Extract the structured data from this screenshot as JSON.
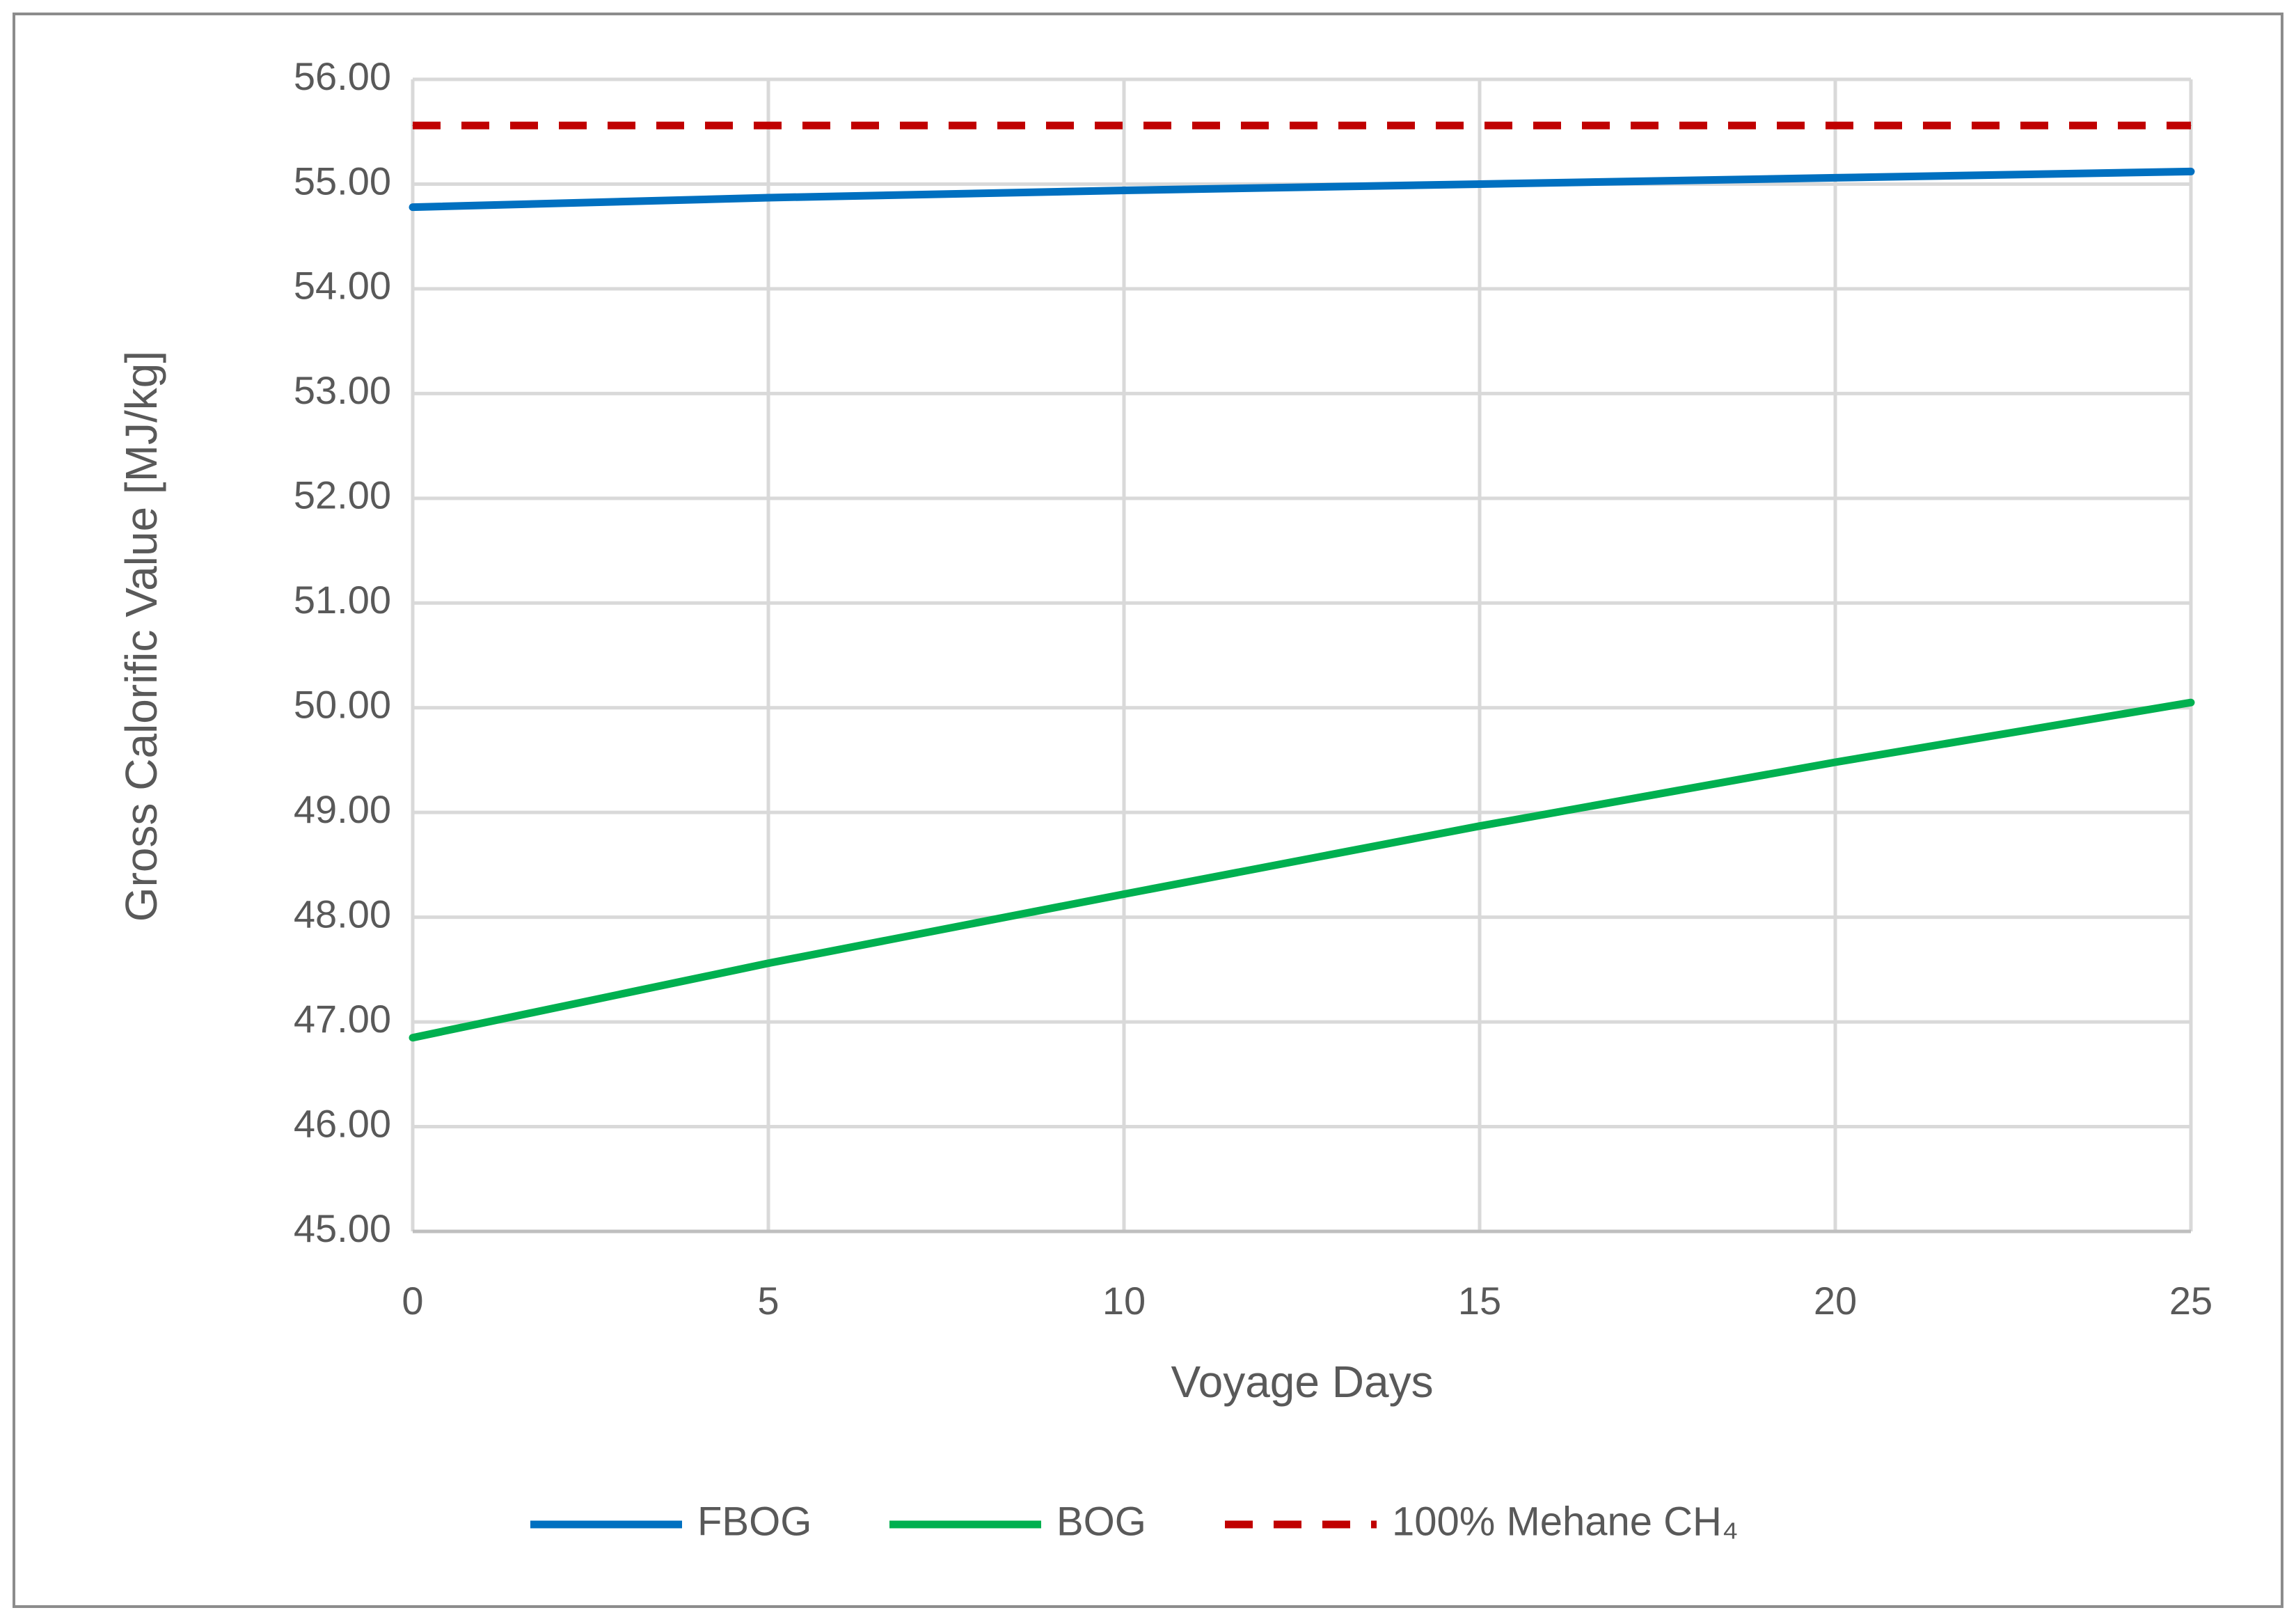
{
  "chart_data": {
    "type": "line",
    "title": "",
    "xlabel": "Voyage Days",
    "ylabel": "Gross Calorific Value [MJ/kg]",
    "xlim": [
      0,
      25
    ],
    "ylim": [
      45,
      56
    ],
    "x_ticks": [
      0,
      5,
      10,
      15,
      20,
      25
    ],
    "x_tick_labels": [
      "0",
      "5",
      "10",
      "15",
      "20",
      "25"
    ],
    "y_ticks": [
      45,
      46,
      47,
      48,
      49,
      50,
      51,
      52,
      53,
      54,
      55,
      56
    ],
    "y_tick_labels": [
      "45.00",
      "46.00",
      "47.00",
      "48.00",
      "49.00",
      "50.00",
      "51.00",
      "52.00",
      "53.00",
      "54.00",
      "55.00",
      "56.00"
    ],
    "grid": true,
    "legend_position": "bottom",
    "series": [
      {
        "name": "FBOG",
        "color": "#0070C0",
        "dash": "solid",
        "x": [
          0,
          5,
          10,
          15,
          20,
          25
        ],
        "values": [
          54.78,
          54.87,
          54.94,
          55.0,
          55.06,
          55.12
        ]
      },
      {
        "name": "BOG",
        "color": "#00B050",
        "dash": "solid",
        "x": [
          0,
          5,
          10,
          15,
          20,
          25
        ],
        "values": [
          46.85,
          47.56,
          48.22,
          48.87,
          49.48,
          50.05
        ]
      },
      {
        "name": "100% Mehane CH₄",
        "color": "#C00000",
        "dash": "dashed",
        "x": [
          0,
          25
        ],
        "values": [
          55.56,
          55.56
        ]
      }
    ]
  }
}
